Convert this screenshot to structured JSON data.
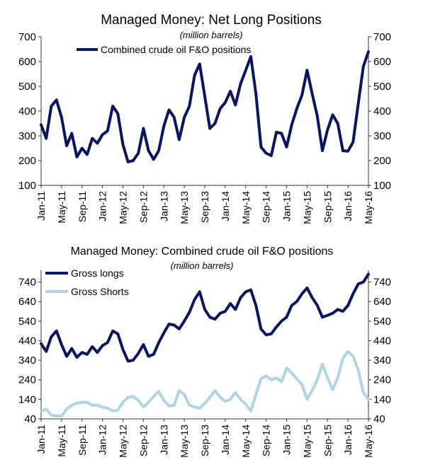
{
  "chart_data": [
    {
      "type": "line",
      "title": "Managed Money: Net Long Positions",
      "subtitle": "(million barrels)",
      "ylim": [
        100,
        700
      ],
      "yticks": [
        100,
        200,
        300,
        400,
        500,
        600,
        700
      ],
      "xlim": [
        "2011-01",
        "2016-05"
      ],
      "x_tick_labels": [
        "Jan-11",
        "May-11",
        "Sep-11",
        "Jan-12",
        "May-12",
        "Sep-12",
        "Jan-13",
        "May-13",
        "Sep-13",
        "Jan-14",
        "May-14",
        "Sep-14",
        "Jan-15",
        "May-15",
        "Sep-15",
        "Jan-16",
        "May-16"
      ],
      "legend_position": "top-left",
      "grid": false,
      "series": [
        {
          "name": "Combined crude oil F&O positions",
          "color": "#0a1466",
          "points": [
            [
              "2011-01",
              345
            ],
            [
              "2011-02",
              290
            ],
            [
              "2011-03",
              420
            ],
            [
              "2011-04",
              445
            ],
            [
              "2011-05",
              375
            ],
            [
              "2011-06",
              260
            ],
            [
              "2011-07",
              310
            ],
            [
              "2011-08",
              215
            ],
            [
              "2011-09",
              250
            ],
            [
              "2011-10",
              225
            ],
            [
              "2011-11",
              290
            ],
            [
              "2011-12",
              270
            ],
            [
              "2012-01",
              305
            ],
            [
              "2012-02",
              320
            ],
            [
              "2012-03",
              420
            ],
            [
              "2012-04",
              390
            ],
            [
              "2012-05",
              265
            ],
            [
              "2012-06",
              195
            ],
            [
              "2012-07",
              200
            ],
            [
              "2012-08",
              230
            ],
            [
              "2012-09",
              330
            ],
            [
              "2012-10",
              240
            ],
            [
              "2012-11",
              205
            ],
            [
              "2012-12",
              240
            ],
            [
              "2013-01",
              340
            ],
            [
              "2013-02",
              405
            ],
            [
              "2013-03",
              375
            ],
            [
              "2013-04",
              285
            ],
            [
              "2013-05",
              375
            ],
            [
              "2013-06",
              420
            ],
            [
              "2013-07",
              545
            ],
            [
              "2013-08",
              590
            ],
            [
              "2013-09",
              460
            ],
            [
              "2013-10",
              330
            ],
            [
              "2013-11",
              350
            ],
            [
              "2013-12",
              410
            ],
            [
              "2014-01",
              435
            ],
            [
              "2014-02",
              480
            ],
            [
              "2014-03",
              425
            ],
            [
              "2014-04",
              510
            ],
            [
              "2014-05",
              565
            ],
            [
              "2014-06",
              620
            ],
            [
              "2014-07",
              470
            ],
            [
              "2014-08",
              255
            ],
            [
              "2014-09",
              230
            ],
            [
              "2014-10",
              220
            ],
            [
              "2014-11",
              315
            ],
            [
              "2014-12",
              310
            ],
            [
              "2015-01",
              255
            ],
            [
              "2015-02",
              345
            ],
            [
              "2015-03",
              410
            ],
            [
              "2015-04",
              465
            ],
            [
              "2015-05",
              565
            ],
            [
              "2015-06",
              470
            ],
            [
              "2015-07",
              380
            ],
            [
              "2015-08",
              240
            ],
            [
              "2015-09",
              325
            ],
            [
              "2015-10",
              385
            ],
            [
              "2015-11",
              350
            ],
            [
              "2015-12",
              240
            ],
            [
              "2016-01",
              238
            ],
            [
              "2016-02",
              275
            ],
            [
              "2016-03",
              430
            ],
            [
              "2016-04",
              580
            ],
            [
              "2016-05",
              640
            ]
          ]
        }
      ]
    },
    {
      "type": "line",
      "title": "Managed Money: Combined crude oil F&O positions",
      "subtitle": "(million barrels)",
      "ylim": [
        40,
        800
      ],
      "yticks": [
        40,
        140,
        240,
        340,
        440,
        540,
        640,
        740
      ],
      "xlim": [
        "2011-01",
        "2016-05"
      ],
      "x_tick_labels": [
        "Jan-11",
        "May-11",
        "Sep-11",
        "Jan-12",
        "May-12",
        "Sep-12",
        "Jan-13",
        "May-13",
        "Sep-13",
        "Jan-14",
        "May-14",
        "Sep-14",
        "Jan-15",
        "May-15",
        "Sep-15",
        "Jan-16",
        "May-16"
      ],
      "legend_position": "top-left",
      "grid": false,
      "series": [
        {
          "name": "Gross longs",
          "color": "#0a1466",
          "points": [
            [
              "2011-01",
              425
            ],
            [
              "2011-02",
              385
            ],
            [
              "2011-03",
              460
            ],
            [
              "2011-04",
              490
            ],
            [
              "2011-05",
              420
            ],
            [
              "2011-06",
              360
            ],
            [
              "2011-07",
              400
            ],
            [
              "2011-08",
              355
            ],
            [
              "2011-09",
              380
            ],
            [
              "2011-10",
              370
            ],
            [
              "2011-11",
              410
            ],
            [
              "2011-12",
              380
            ],
            [
              "2012-01",
              415
            ],
            [
              "2012-02",
              430
            ],
            [
              "2012-03",
              490
            ],
            [
              "2012-04",
              475
            ],
            [
              "2012-05",
              395
            ],
            [
              "2012-06",
              335
            ],
            [
              "2012-07",
              340
            ],
            [
              "2012-08",
              375
            ],
            [
              "2012-09",
              420
            ],
            [
              "2012-10",
              360
            ],
            [
              "2012-11",
              370
            ],
            [
              "2012-12",
              430
            ],
            [
              "2013-01",
              480
            ],
            [
              "2013-02",
              525
            ],
            [
              "2013-03",
              520
            ],
            [
              "2013-04",
              500
            ],
            [
              "2013-05",
              540
            ],
            [
              "2013-06",
              585
            ],
            [
              "2013-07",
              650
            ],
            [
              "2013-08",
              690
            ],
            [
              "2013-09",
              600
            ],
            [
              "2013-10",
              560
            ],
            [
              "2013-11",
              550
            ],
            [
              "2013-12",
              580
            ],
            [
              "2014-01",
              590
            ],
            [
              "2014-02",
              630
            ],
            [
              "2014-03",
              600
            ],
            [
              "2014-04",
              660
            ],
            [
              "2014-05",
              690
            ],
            [
              "2014-06",
              700
            ],
            [
              "2014-07",
              620
            ],
            [
              "2014-08",
              500
            ],
            [
              "2014-09",
              470
            ],
            [
              "2014-10",
              475
            ],
            [
              "2014-11",
              510
            ],
            [
              "2014-12",
              540
            ],
            [
              "2015-01",
              560
            ],
            [
              "2015-02",
              620
            ],
            [
              "2015-03",
              640
            ],
            [
              "2015-04",
              680
            ],
            [
              "2015-05",
              710
            ],
            [
              "2015-06",
              660
            ],
            [
              "2015-07",
              620
            ],
            [
              "2015-08",
              560
            ],
            [
              "2015-09",
              570
            ],
            [
              "2015-10",
              580
            ],
            [
              "2015-11",
              600
            ],
            [
              "2015-12",
              590
            ],
            [
              "2016-01",
              620
            ],
            [
              "2016-02",
              680
            ],
            [
              "2016-03",
              730
            ],
            [
              "2016-04",
              740
            ],
            [
              "2016-05",
              780
            ]
          ]
        },
        {
          "name": "Gross Shorts",
          "color": "#aed5e3",
          "points": [
            [
              "2011-01",
              80
            ],
            [
              "2011-02",
              90
            ],
            [
              "2011-03",
              60
            ],
            [
              "2011-04",
              55
            ],
            [
              "2011-05",
              55
            ],
            [
              "2011-06",
              90
            ],
            [
              "2011-07",
              110
            ],
            [
              "2011-08",
              120
            ],
            [
              "2011-09",
              125
            ],
            [
              "2011-10",
              125
            ],
            [
              "2011-11",
              110
            ],
            [
              "2011-12",
              110
            ],
            [
              "2012-01",
              100
            ],
            [
              "2012-02",
              95
            ],
            [
              "2012-03",
              80
            ],
            [
              "2012-04",
              85
            ],
            [
              "2012-05",
              125
            ],
            [
              "2012-06",
              150
            ],
            [
              "2012-07",
              155
            ],
            [
              "2012-08",
              135
            ],
            [
              "2012-09",
              100
            ],
            [
              "2012-10",
              125
            ],
            [
              "2012-11",
              155
            ],
            [
              "2012-12",
              180
            ],
            [
              "2013-01",
              135
            ],
            [
              "2013-02",
              105
            ],
            [
              "2013-03",
              110
            ],
            [
              "2013-04",
              185
            ],
            [
              "2013-05",
              165
            ],
            [
              "2013-06",
              110
            ],
            [
              "2013-07",
              100
            ],
            [
              "2013-08",
              95
            ],
            [
              "2013-09",
              120
            ],
            [
              "2013-10",
              150
            ],
            [
              "2013-11",
              185
            ],
            [
              "2013-12",
              150
            ],
            [
              "2014-01",
              130
            ],
            [
              "2014-02",
              140
            ],
            [
              "2014-03",
              175
            ],
            [
              "2014-04",
              140
            ],
            [
              "2014-05",
              115
            ],
            [
              "2014-06",
              80
            ],
            [
              "2014-07",
              165
            ],
            [
              "2014-08",
              245
            ],
            [
              "2014-09",
              260
            ],
            [
              "2014-10",
              240
            ],
            [
              "2014-11",
              250
            ],
            [
              "2014-12",
              230
            ],
            [
              "2015-01",
              300
            ],
            [
              "2015-02",
              275
            ],
            [
              "2015-03",
              245
            ],
            [
              "2015-04",
              215
            ],
            [
              "2015-05",
              140
            ],
            [
              "2015-06",
              185
            ],
            [
              "2015-07",
              240
            ],
            [
              "2015-08",
              320
            ],
            [
              "2015-09",
              250
            ],
            [
              "2015-10",
              190
            ],
            [
              "2015-11",
              250
            ],
            [
              "2015-12",
              350
            ],
            [
              "2016-01",
              385
            ],
            [
              "2016-02",
              360
            ],
            [
              "2016-03",
              290
            ],
            [
              "2016-04",
              175
            ],
            [
              "2016-05",
              140
            ]
          ]
        }
      ]
    }
  ]
}
